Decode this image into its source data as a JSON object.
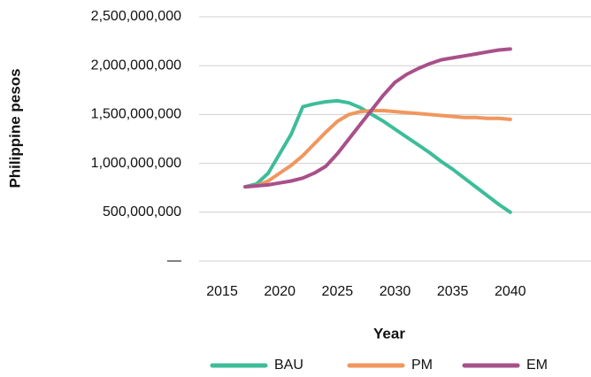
{
  "chart_data": {
    "type": "line",
    "xlabel": "Year",
    "ylabel": "Philippine pesos",
    "x": [
      2017,
      2018,
      2019,
      2020,
      2021,
      2022,
      2023,
      2024,
      2025,
      2026,
      2027,
      2028,
      2029,
      2030,
      2031,
      2032,
      2033,
      2034,
      2035,
      2036,
      2037,
      2038,
      2039,
      2040
    ],
    "series": [
      {
        "name": "BAU",
        "color": "#3dbd9a",
        "values": [
          760000000,
          790000000,
          900000000,
          1100000000,
          1300000000,
          1580000000,
          1610000000,
          1630000000,
          1640000000,
          1620000000,
          1570000000,
          1500000000,
          1430000000,
          1350000000,
          1270000000,
          1190000000,
          1110000000,
          1020000000,
          940000000,
          850000000,
          760000000,
          670000000,
          580000000,
          500000000
        ]
      },
      {
        "name": "PM",
        "color": "#f0975e",
        "values": [
          760000000,
          770000000,
          820000000,
          900000000,
          980000000,
          1080000000,
          1200000000,
          1320000000,
          1430000000,
          1500000000,
          1530000000,
          1540000000,
          1540000000,
          1530000000,
          1520000000,
          1510000000,
          1500000000,
          1490000000,
          1480000000,
          1470000000,
          1470000000,
          1460000000,
          1460000000,
          1450000000
        ]
      },
      {
        "name": "EM",
        "color": "#a8508a",
        "values": [
          760000000,
          770000000,
          780000000,
          800000000,
          820000000,
          850000000,
          900000000,
          970000000,
          1100000000,
          1250000000,
          1400000000,
          1550000000,
          1700000000,
          1830000000,
          1910000000,
          1970000000,
          2020000000,
          2060000000,
          2080000000,
          2100000000,
          2120000000,
          2140000000,
          2160000000,
          2170000000
        ]
      }
    ],
    "xlim": [
      2013,
      2047
    ],
    "xticks": [
      2015,
      2020,
      2025,
      2030,
      2035,
      2040
    ],
    "ylim": [
      0,
      2500000000
    ],
    "yticks": [
      {
        "value": 0,
        "label": "—"
      },
      {
        "value": 500000000,
        "label": "500,000,000"
      },
      {
        "value": 1000000000,
        "label": "1,000,000,000"
      },
      {
        "value": 1500000000,
        "label": "1,500,000,000"
      },
      {
        "value": 2000000000,
        "label": "2,000,000,000"
      },
      {
        "value": 2500000000,
        "label": "2,500,000,000"
      }
    ],
    "grid": true,
    "legend": "bottom"
  }
}
